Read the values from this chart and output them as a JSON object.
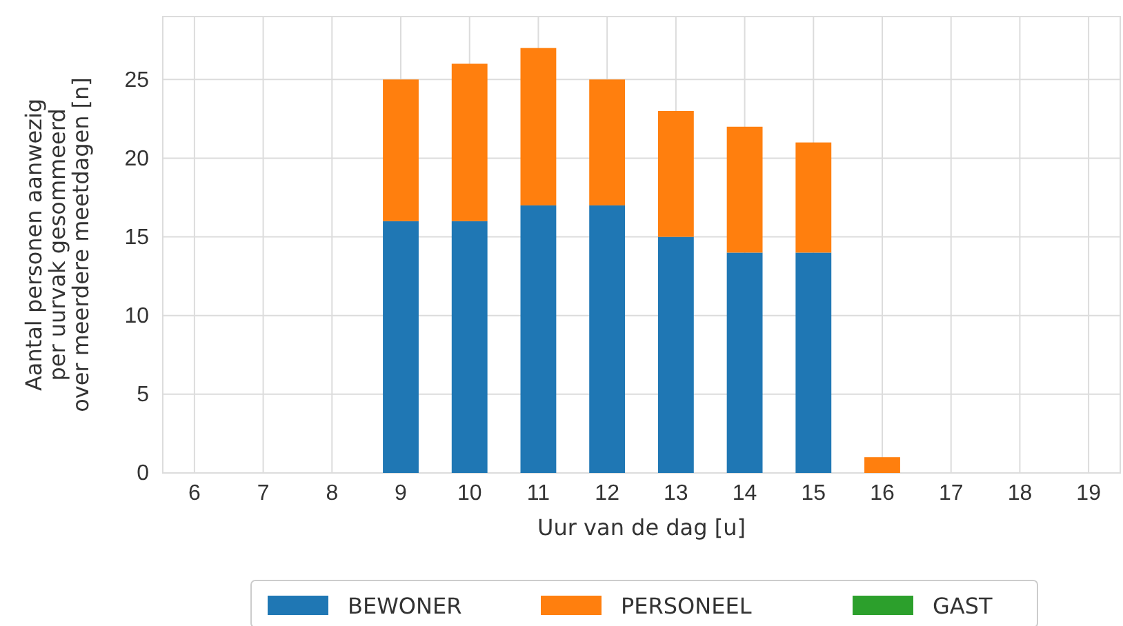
{
  "chart_data": {
    "type": "bar",
    "stacked": true,
    "xlabel": "Uur van de dag [u]",
    "ylabel": "Aantal personen aanwezig\nper uurvak gesommeerd\nover meerdere meetdagen [n]",
    "categories": [
      "6",
      "7",
      "8",
      "9",
      "10",
      "11",
      "12",
      "13",
      "14",
      "15",
      "16",
      "17",
      "18",
      "19"
    ],
    "series": [
      {
        "name": "BEWONER",
        "color": "#1f77b4",
        "values": [
          0,
          0,
          0,
          16,
          16,
          17,
          17,
          15,
          14,
          14,
          0,
          0,
          0,
          0
        ]
      },
      {
        "name": "PERSONEEL",
        "color": "#ff7f0e",
        "values": [
          0,
          0,
          0,
          9,
          10,
          10,
          8,
          8,
          8,
          7,
          1,
          0,
          0,
          0
        ]
      },
      {
        "name": "GAST",
        "color": "#2ca02c",
        "values": [
          0,
          0,
          0,
          0,
          0,
          0,
          0,
          0,
          0,
          0,
          0,
          0,
          0,
          0
        ]
      }
    ],
    "ylim": [
      0,
      29
    ],
    "yticks": [
      0,
      5,
      10,
      15,
      20,
      25
    ],
    "grid": true,
    "legend": "bottom"
  }
}
